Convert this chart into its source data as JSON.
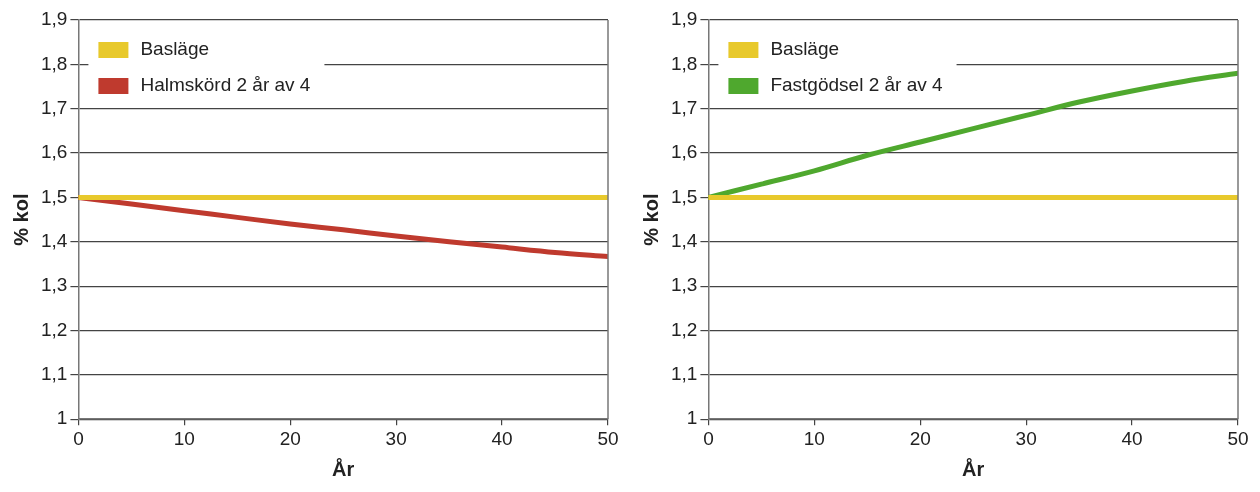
{
  "chart_data": [
    {
      "type": "line",
      "xlabel": "År",
      "ylabel": "% kol",
      "legend": "top left",
      "grid": "y",
      "marker": "none",
      "line_style": "solid",
      "x": [
        0,
        5,
        10,
        15,
        20,
        25,
        30,
        35,
        40,
        45,
        50
      ],
      "series": [
        {
          "name": "Basläge",
          "color": "#e8c92c",
          "values": [
            1.5,
            1.5,
            1.5,
            1.5,
            1.5,
            1.5,
            1.5,
            1.5,
            1.5,
            1.5,
            1.5
          ]
        },
        {
          "name": "Halmskörd 2 år av 4",
          "color": "#bf3a2e",
          "values": [
            1.5,
            1.485,
            1.47,
            1.455,
            1.44,
            1.427,
            1.413,
            1.4,
            1.388,
            1.376,
            1.367
          ]
        }
      ],
      "xlim": [
        0,
        50
      ],
      "xticks": [
        0,
        10,
        20,
        30,
        40,
        50
      ],
      "ylim": [
        1,
        1.9
      ],
      "yticks": [
        {
          "value": 1,
          "label": "1"
        },
        {
          "value": 1.1,
          "label": "1,1"
        },
        {
          "value": 1.2,
          "label": "1,2"
        },
        {
          "value": 1.3,
          "label": "1,3"
        },
        {
          "value": 1.4,
          "label": "1,4"
        },
        {
          "value": 1.5,
          "label": "1,5"
        },
        {
          "value": 1.6,
          "label": "1,6"
        },
        {
          "value": 1.7,
          "label": "1,7"
        },
        {
          "value": 1.8,
          "label": "1,8"
        },
        {
          "value": 1.9,
          "label": "1,9"
        }
      ]
    },
    {
      "type": "line",
      "xlabel": "År",
      "ylabel": "% kol",
      "legend": "top left",
      "grid": "y",
      "marker": "none",
      "line_style": "solid",
      "x": [
        0,
        5,
        10,
        15,
        20,
        25,
        30,
        35,
        40,
        45,
        50
      ],
      "series": [
        {
          "name": "Basläge",
          "color": "#e8c92c",
          "values": [
            1.5,
            1.5,
            1.5,
            1.5,
            1.5,
            1.5,
            1.5,
            1.5,
            1.5,
            1.5,
            1.5
          ]
        },
        {
          "name": "Fastgödsel 2 år av 4",
          "color": "#4fa82e",
          "values": [
            1.5,
            1.53,
            1.56,
            1.595,
            1.625,
            1.655,
            1.685,
            1.715,
            1.74,
            1.762,
            1.78
          ]
        }
      ],
      "xlim": [
        0,
        50
      ],
      "xticks": [
        0,
        10,
        20,
        30,
        40,
        50
      ],
      "ylim": [
        1,
        1.9
      ],
      "yticks": [
        {
          "value": 1,
          "label": "1"
        },
        {
          "value": 1.1,
          "label": "1,1"
        },
        {
          "value": 1.2,
          "label": "1,2"
        },
        {
          "value": 1.3,
          "label": "1,3"
        },
        {
          "value": 1.4,
          "label": "1,4"
        },
        {
          "value": 1.5,
          "label": "1,5"
        },
        {
          "value": 1.6,
          "label": "1,6"
        },
        {
          "value": 1.7,
          "label": "1,7"
        },
        {
          "value": 1.8,
          "label": "1,8"
        },
        {
          "value": 1.9,
          "label": "1,9"
        }
      ]
    }
  ]
}
